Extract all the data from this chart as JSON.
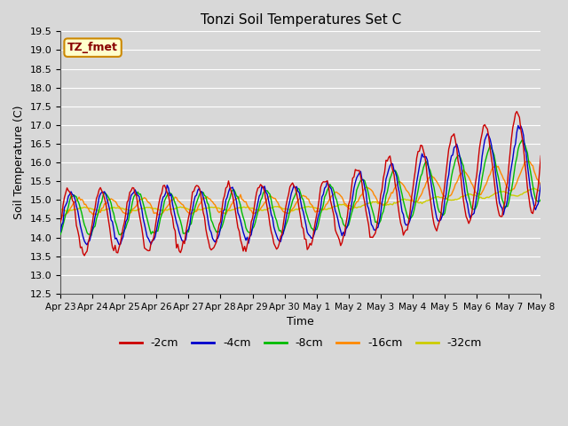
{
  "title": "Tonzi Soil Temperatures Set C",
  "xlabel": "Time",
  "ylabel": "Soil Temperature (C)",
  "ylim": [
    12.5,
    19.5
  ],
  "legend_label_box": "TZ_fmet",
  "legend_labels": [
    "-2cm",
    "-4cm",
    "-8cm",
    "-16cm",
    "-32cm"
  ],
  "legend_colors": [
    "#cc0000",
    "#0000cc",
    "#00bb00",
    "#ff8800",
    "#cccc00"
  ],
  "bg_color": "#d8d8d8",
  "plot_bg_color": "#d8d8d8",
  "grid_color": "#bbbbbb",
  "tick_labels": [
    "Apr 23",
    "Apr 24",
    "Apr 25",
    "Apr 26",
    "Apr 27",
    "Apr 28",
    "Apr 29",
    "Apr 30",
    "May 1",
    "May 2",
    "May 3",
    "May 4",
    "May 5",
    "May 6",
    "May 7",
    "May 8"
  ]
}
